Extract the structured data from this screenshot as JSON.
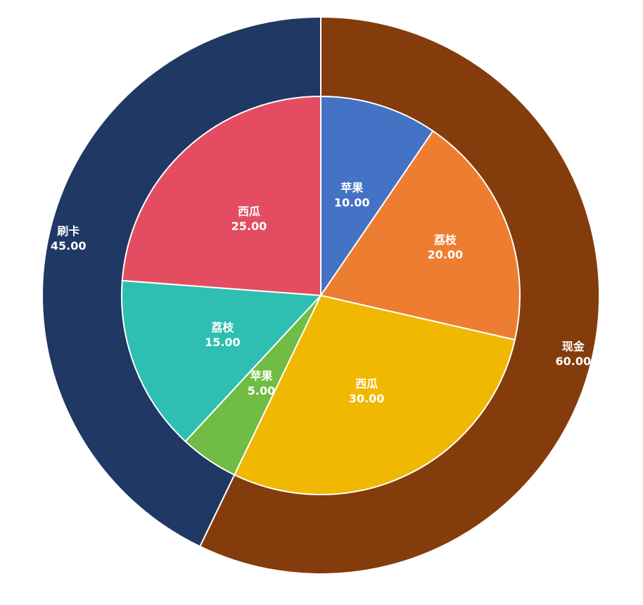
{
  "chart_data": {
    "type": "pie",
    "variant": "nested-donut",
    "title": "",
    "outer_ring": {
      "slices": [
        {
          "label": "现金",
          "value": 60.0,
          "display": "60.00",
          "color": "#843C0C"
        },
        {
          "label": "刷卡",
          "value": 45.0,
          "display": "45.00",
          "color": "#1F3864"
        }
      ]
    },
    "inner_pie": {
      "slices": [
        {
          "label": "苹果",
          "value": 10.0,
          "display": "10.00",
          "color": "#4472C4"
        },
        {
          "label": "荔枝",
          "value": 20.0,
          "display": "20.00",
          "color": "#ED7D31"
        },
        {
          "label": "西瓜",
          "value": 30.0,
          "display": "30.00",
          "color": "#F0B800"
        },
        {
          "label": "苹果",
          "value": 5.0,
          "display": "5.00",
          "color": "#70BC44"
        },
        {
          "label": "荔枝",
          "value": 15.0,
          "display": "15.00",
          "color": "#2EBFB2"
        },
        {
          "label": "西瓜",
          "value": 25.0,
          "display": "25.00",
          "color": "#E44D61"
        }
      ]
    },
    "legend": "none",
    "data_labels": "category-and-value"
  }
}
